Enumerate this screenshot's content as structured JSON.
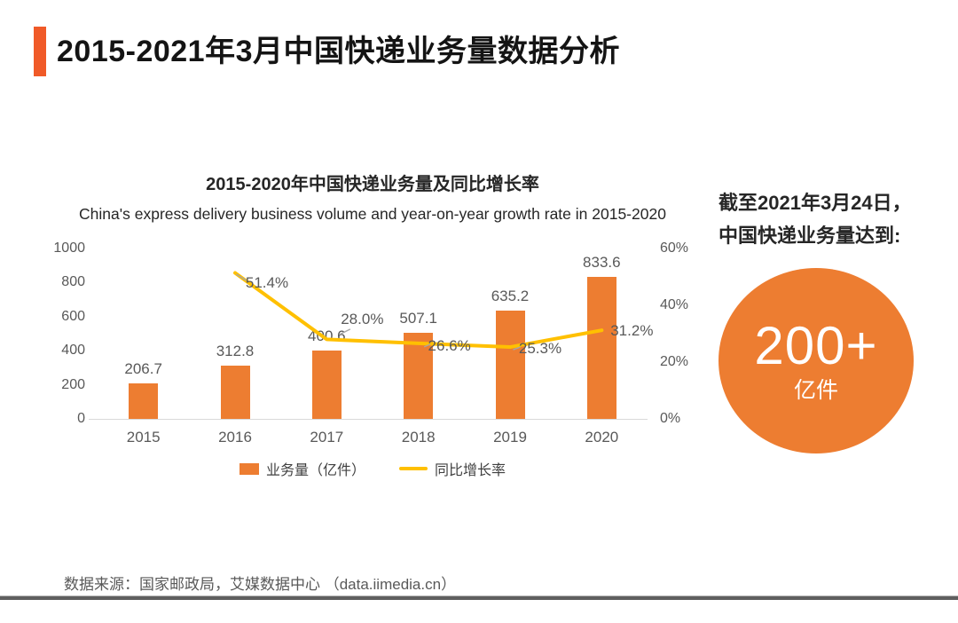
{
  "page": {
    "title": "2015-2021年3月中国快递业务量数据分析",
    "source_note": "数据来源：国家邮政局，艾媒数据中心 （data.iimedia.cn）"
  },
  "chart_data": {
    "type": "combo-bar-line",
    "title": "2015-2020年中国快递业务量及同比增长率",
    "subtitle": "China's express delivery business volume and year-on-year growth rate in 2015-2020",
    "categories": [
      "2015",
      "2016",
      "2017",
      "2018",
      "2019",
      "2020"
    ],
    "series": [
      {
        "name": "业务量（亿件）",
        "type": "bar",
        "axis": "left",
        "color": "#ED7D31",
        "values": [
          206.7,
          312.8,
          400.6,
          507.1,
          635.2,
          833.6
        ],
        "value_labels": [
          "206.7",
          "312.8",
          "400.6",
          "507.1",
          "635.2",
          "833.6"
        ]
      },
      {
        "name": "同比增长率",
        "type": "line",
        "axis": "right",
        "color": "#FFC000",
        "values": [
          null,
          51.4,
          28.0,
          26.6,
          25.3,
          31.2
        ],
        "value_labels": [
          "",
          "51.4%",
          "28.0%",
          "26.6%",
          "25.3%",
          "31.2%"
        ]
      }
    ],
    "left_axis": {
      "min": 0,
      "max": 1000,
      "ticks": [
        0,
        200,
        400,
        600,
        800,
        1000
      ]
    },
    "right_axis": {
      "min": 0,
      "max": 60,
      "tick_values": [
        0,
        20,
        40,
        60
      ],
      "tick_labels": [
        "0%",
        "20%",
        "40%",
        "60%"
      ]
    },
    "legend": {
      "position": "bottom",
      "items": [
        {
          "label": "业务量（亿件）"
        },
        {
          "label": "同比增长率"
        }
      ]
    },
    "grid": false
  },
  "highlight": {
    "caption_line1": "截至2021年3月24日，",
    "caption_line2": "中国快递业务量达到:",
    "badge_value": "200+",
    "badge_unit": "亿件"
  },
  "colors": {
    "accent_bar": "#F05A28",
    "bar": "#ED7D31",
    "line": "#FFC000",
    "leader": "#A6A6A6",
    "badge_circle": "#ED7D31",
    "axis_text": "#595959",
    "divider": "#5f5f5f"
  }
}
